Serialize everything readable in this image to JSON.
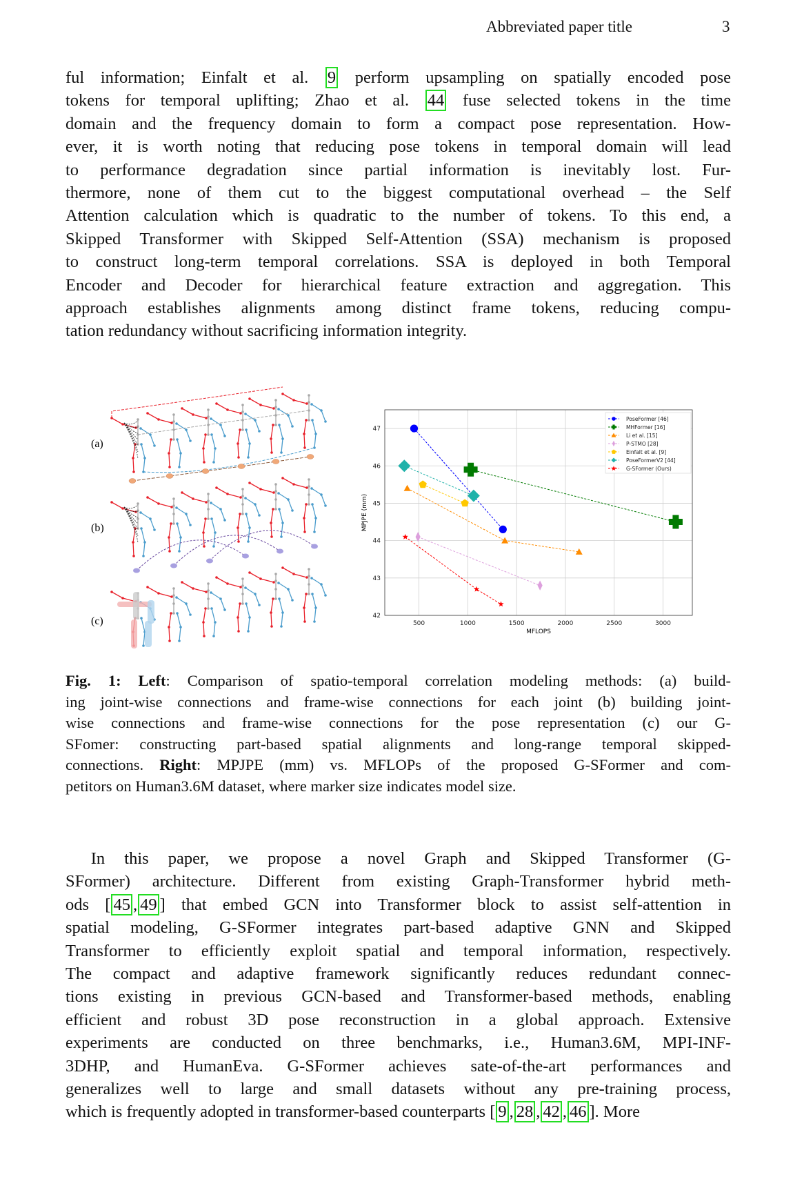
{
  "header": {
    "title": "Abbreviated paper title",
    "page": "3"
  },
  "para1": [
    [
      "ful information; Einfalt et al. ",
      {
        "cite": "9"
      },
      " perform upsampling on spatially encoded pose"
    ],
    [
      "tokens for temporal uplifting; Zhao et al. ",
      {
        "cite": "44"
      },
      " fuse selected tokens in the time"
    ],
    [
      "domain and the frequency domain to form a compact pose representation. How-"
    ],
    [
      "ever, it is worth noting that reducing pose tokens in temporal domain will lead"
    ],
    [
      "to performance degradation since partial information is inevitably lost. Fur-"
    ],
    [
      "thermore, none of them cut to the biggest computational overhead – the Self"
    ],
    [
      "Attention calculation which is quadratic to the number of tokens. To this end, a"
    ],
    [
      "Skipped Transformer with Skipped Self-Attention (SSA) mechanism is proposed"
    ],
    [
      "to construct long-term temporal correlations. SSA is deployed in both Temporal"
    ],
    [
      "Encoder and Decoder for hierarchical feature extraction and aggregation. This"
    ],
    [
      "approach establishes alignments among distinct frame tokens, reducing compu-"
    ],
    [
      "tation redundancy without sacrificing information integrity."
    ]
  ],
  "figure": {
    "panel_labels": [
      "(a)",
      "(b)",
      "(c)"
    ],
    "caption": [
      [
        {
          "b": "Fig. 1: Left"
        },
        ": Comparison of spatio-temporal correlation modeling methods: (a) build-"
      ],
      [
        "ing joint-wise connections and frame-wise connections for each joint (b) building joint-"
      ],
      [
        "wise connections and frame-wise connections for the pose representation (c) our G-"
      ],
      [
        "SFomer: constructing part-based spatial alignments and long-range temporal skipped-"
      ],
      [
        "connections. ",
        {
          "b": "Right"
        },
        ": MPJPE (mm) vs. MFLOPs of the proposed G-SFormer and com-"
      ],
      [
        "petitors on Human3.6M dataset, where marker size indicates model size."
      ]
    ]
  },
  "chart_data": {
    "type": "scatter",
    "xlabel": "MFLOPS",
    "ylabel": "MPJPE (mm)",
    "xlim": [
      150,
      3300
    ],
    "ylim": [
      42,
      47.5
    ],
    "xticks": [
      500,
      1000,
      1500,
      2000,
      2500,
      3000
    ],
    "yticks": [
      42,
      43,
      44,
      45,
      46,
      47
    ],
    "grid": true,
    "legend": "top-right",
    "series": [
      {
        "name": "PoseFormer [46]",
        "color": "#0000ff",
        "marker": "circle",
        "x": [
          450,
          1360
        ],
        "y": [
          47.0,
          44.3
        ]
      },
      {
        "name": "MHFormer [16]",
        "color": "#007a00",
        "marker": "plus",
        "x": [
          1030,
          3130
        ],
        "y": [
          45.9,
          44.5
        ]
      },
      {
        "name": "Li et al. [15]",
        "color": "#ff8c00",
        "marker": "triangle",
        "x": [
          380,
          1380,
          2140
        ],
        "y": [
          45.4,
          44.0,
          43.7
        ]
      },
      {
        "name": "P-STMO [28]",
        "color": "#dda0dd",
        "marker": "thin-diamond",
        "x": [
          490,
          1740
        ],
        "y": [
          44.1,
          42.8
        ]
      },
      {
        "name": "Einfalt et al. [9]",
        "color": "#ffc800",
        "marker": "pentagon",
        "x": [
          540,
          970
        ],
        "y": [
          45.5,
          45.0
        ]
      },
      {
        "name": "PoseFormerV2 [44]",
        "color": "#20b2aa",
        "marker": "diamond",
        "x": [
          350,
          1060
        ],
        "y": [
          46.0,
          45.2
        ]
      },
      {
        "name": "G-SFormer (Ours)",
        "color": "#ff0000",
        "marker": "star",
        "x": [
          360,
          1090,
          1340
        ],
        "y": [
          44.1,
          42.7,
          42.3
        ]
      }
    ]
  },
  "para2": [
    [
      "  In this paper, we propose a novel Graph and Skipped Transformer (G-"
    ],
    [
      "SFormer) architecture. Different from existing Graph-Transformer hybrid meth-"
    ],
    [
      "ods [",
      {
        "cite": "45"
      },
      ",",
      {
        "cite": "49"
      },
      "] that embed GCN into Transformer block to assist self-attention in"
    ],
    [
      "spatial modeling, G-SFormer integrates part-based adaptive GNN and Skipped"
    ],
    [
      "Transformer to efficiently exploit spatial and temporal information, respectively."
    ],
    [
      "The compact and adaptive framework significantly reduces redundant connec-"
    ],
    [
      "tions existing in previous GCN-based and Transformer-based methods, enabling"
    ],
    [
      "efficient and robust 3D pose reconstruction in a global approach. Extensive"
    ],
    [
      "experiments are conducted on three benchmarks, i.e., Human3.6M, MPI-INF-"
    ],
    [
      "3DHP, and HumanEva. G-SFormer achieves sate-of-the-art performances and"
    ],
    [
      "generalizes well to large and small datasets without any pre-training process,"
    ],
    [
      "which is frequently adopted in transformer-based counterparts [",
      {
        "cite": "9"
      },
      ",",
      {
        "cite": "28"
      },
      ",",
      {
        "cite": "42"
      },
      ",",
      {
        "cite": "46"
      },
      "]. More"
    ]
  ]
}
